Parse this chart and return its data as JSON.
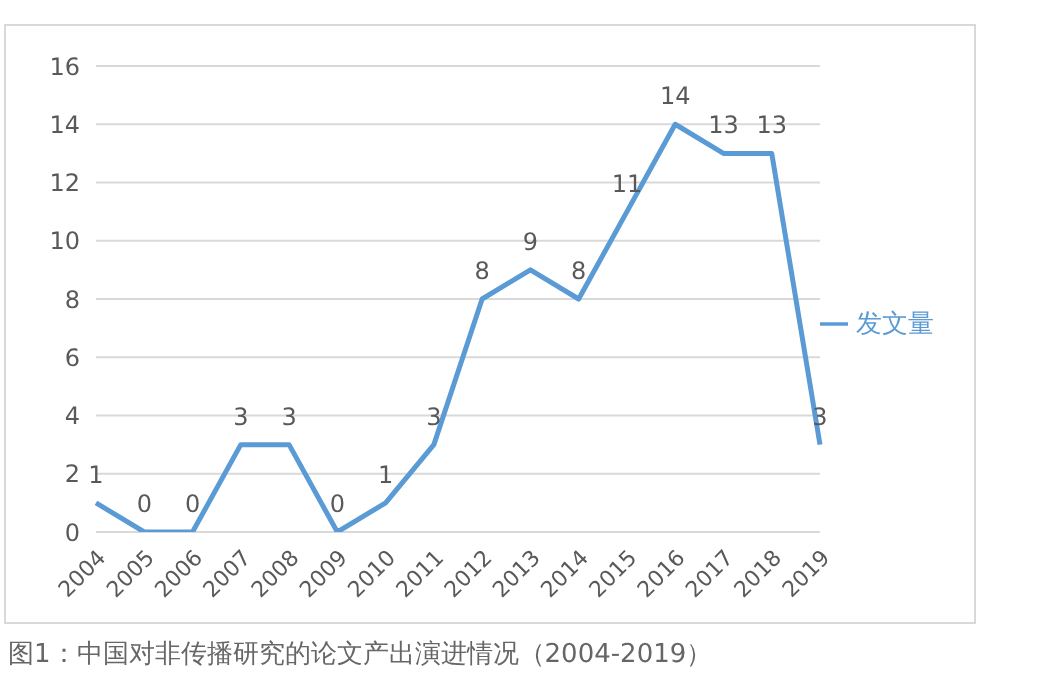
{
  "chart_data": {
    "type": "line",
    "categories": [
      "2004",
      "2005",
      "2006",
      "2007",
      "2008",
      "2009",
      "2010",
      "2011",
      "2012",
      "2013",
      "2014",
      "2015",
      "2016",
      "2017",
      "2018",
      "2019"
    ],
    "series": [
      {
        "name": "发文量",
        "color": "#5b9bd5",
        "values": [
          1,
          0,
          0,
          3,
          3,
          0,
          1,
          3,
          8,
          9,
          8,
          11,
          14,
          13,
          13,
          3
        ]
      }
    ],
    "ylim": [
      0,
      16
    ],
    "yticks": [
      0,
      2,
      4,
      6,
      8,
      10,
      12,
      14,
      16
    ],
    "grid": "y",
    "legend": "right",
    "marker": "none",
    "data_labels": true,
    "annotations": [
      "图1：中国对非传播研究的论文产出演进情况（2004-2019）"
    ]
  }
}
